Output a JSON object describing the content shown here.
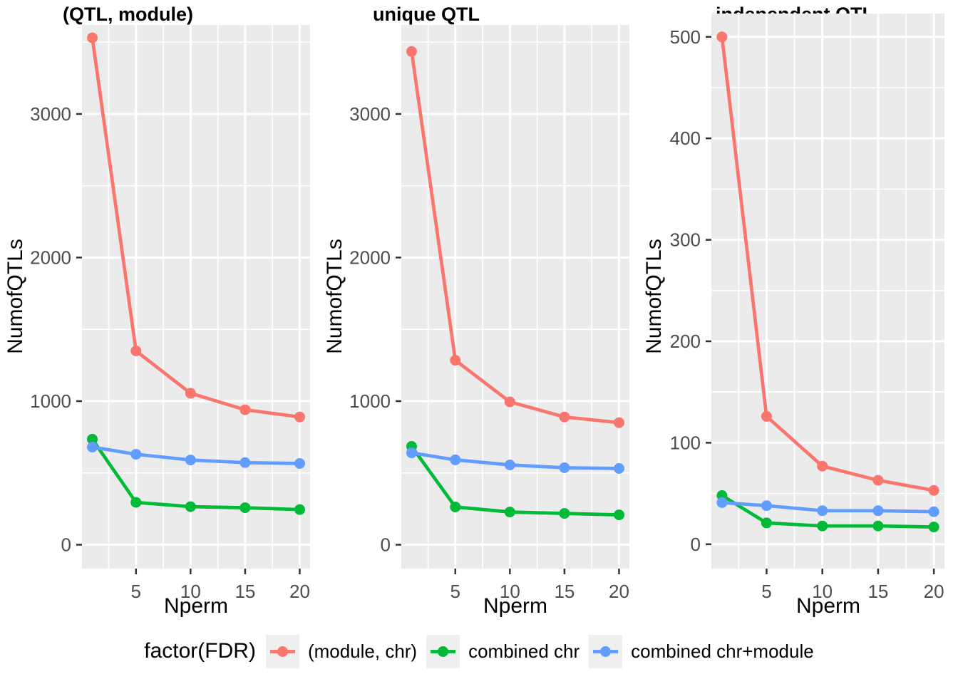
{
  "chart_data": {
    "type": "line",
    "layout_note": "three side-by-side line-chart panels with shared bottom legend, ggplot-style gray panels with white gridlines",
    "panel_background": "#EBEBEB",
    "grid_color": "#FFFFFF",
    "tick_color": "#333333",
    "tick_label_color": "#4D4D4D",
    "legend": {
      "title": "factor(FDR)",
      "position": "bottom",
      "key_background": "#EFEFEF"
    },
    "series_meta": [
      {
        "label": "(module, chr)",
        "color": "#F8766D"
      },
      {
        "label": "combined chr",
        "color": "#00BA38"
      },
      {
        "label": "combined chr+module",
        "color": "#619CFF"
      }
    ],
    "x": [
      1,
      5,
      10,
      15,
      20
    ],
    "charts": [
      {
        "title": "(QTL, module)",
        "xlabel": "Nperm",
        "ylabel": "NumofQTLs",
        "xlim": [
          0.05,
          20.95
        ],
        "ylim": [
          -166,
          3620
        ],
        "xticks": [
          5,
          10,
          15,
          20
        ],
        "xminor": [
          2.5,
          7.5,
          12.5,
          17.5
        ],
        "yticks": [
          0,
          1000,
          2000,
          3000
        ],
        "yminor": [
          500,
          1500,
          2500,
          3500
        ],
        "series": [
          {
            "name": "(module, chr)",
            "values": [
              3530,
              1350,
              1055,
              940,
              890
            ]
          },
          {
            "name": "combined chr",
            "values": [
              735,
              295,
              265,
              258,
              245
            ]
          },
          {
            "name": "combined chr+module",
            "values": [
              680,
              630,
              590,
              572,
              566
            ]
          }
        ]
      },
      {
        "title": "unique QTL",
        "xlabel": "Nperm",
        "ylabel": "NumofQTLs",
        "xlim": [
          0.05,
          20.95
        ],
        "ylim": [
          -166,
          3620
        ],
        "xticks": [
          5,
          10,
          15,
          20
        ],
        "xminor": [
          2.5,
          7.5,
          12.5,
          17.5
        ],
        "yticks": [
          0,
          1000,
          2000,
          3000
        ],
        "yminor": [
          500,
          1500,
          2500,
          3500
        ],
        "series": [
          {
            "name": "(module, chr)",
            "values": [
              3435,
              1285,
              995,
              890,
              850
            ]
          },
          {
            "name": "combined chr",
            "values": [
              685,
              263,
              228,
              218,
              208
            ]
          },
          {
            "name": "combined chr+module",
            "values": [
              640,
              591,
              556,
              536,
              531
            ]
          }
        ]
      },
      {
        "title": "independent QTL",
        "xlabel": "Nperm",
        "ylabel": "NumofQTLs",
        "xlim": [
          0.05,
          20.95
        ],
        "ylim": [
          -24,
          523
        ],
        "xticks": [
          5,
          10,
          15,
          20
        ],
        "xminor": [
          2.5,
          7.5,
          12.5,
          17.5
        ],
        "yticks": [
          0,
          100,
          200,
          300,
          400,
          500
        ],
        "yminor": [
          50,
          150,
          250,
          350,
          450
        ],
        "series": [
          {
            "name": "(module, chr)",
            "values": [
              500,
              126,
              77,
              63,
              53
            ]
          },
          {
            "name": "combined chr",
            "values": [
              48,
              21,
              18,
              18,
              17
            ]
          },
          {
            "name": "combined chr+module",
            "values": [
              41,
              38,
              33,
              33,
              32
            ]
          }
        ]
      }
    ]
  }
}
